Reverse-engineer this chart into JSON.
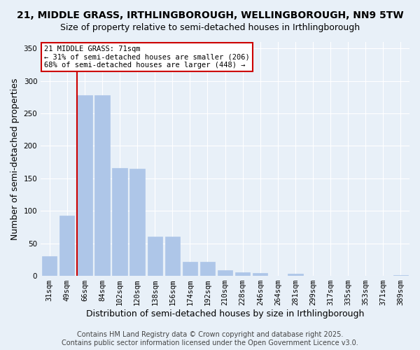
{
  "title": "21, MIDDLE GRASS, IRTHLINGBOROUGH, WELLINGBOROUGH, NN9 5TW",
  "subtitle": "Size of property relative to semi-detached houses in Irthlingborough",
  "xlabel": "Distribution of semi-detached houses by size in Irthlingborough",
  "ylabel": "Number of semi-detached properties",
  "bar_values": [
    30,
    93,
    278,
    278,
    166,
    165,
    60,
    60,
    22,
    22,
    9,
    5,
    4,
    0,
    3,
    0,
    0,
    0,
    0,
    0,
    1
  ],
  "categories": [
    "31sqm",
    "49sqm",
    "66sqm",
    "84sqm",
    "102sqm",
    "120sqm",
    "138sqm",
    "156sqm",
    "174sqm",
    "192sqm",
    "210sqm",
    "228sqm",
    "246sqm",
    "264sqm",
    "281sqm",
    "299sqm",
    "317sqm",
    "335sqm",
    "353sqm",
    "371sqm",
    "389sqm"
  ],
  "bar_color": "#aec6e8",
  "bar_edge_color": "#aec6e8",
  "marker_bin_index": 2,
  "red_line_x": 1.58,
  "red_line_color": "#cc0000",
  "annotation_title": "21 MIDDLE GRASS: 71sqm",
  "annotation_line1": "← 31% of semi-detached houses are smaller (206)",
  "annotation_line2": "68% of semi-detached houses are larger (448) →",
  "annotation_box_color": "#ffffff",
  "annotation_box_edge": "#cc0000",
  "ylim": [
    0,
    360
  ],
  "yticks": [
    0,
    50,
    100,
    150,
    200,
    250,
    300,
    350
  ],
  "bg_color": "#e8f0f8",
  "plot_bg_color": "#e8f0f8",
  "footer1": "Contains HM Land Registry data © Crown copyright and database right 2025.",
  "footer2": "Contains public sector information licensed under the Open Government Licence v3.0.",
  "title_fontsize": 10,
  "subtitle_fontsize": 9,
  "xlabel_fontsize": 9,
  "ylabel_fontsize": 9,
  "tick_fontsize": 7.5,
  "footer_fontsize": 7
}
